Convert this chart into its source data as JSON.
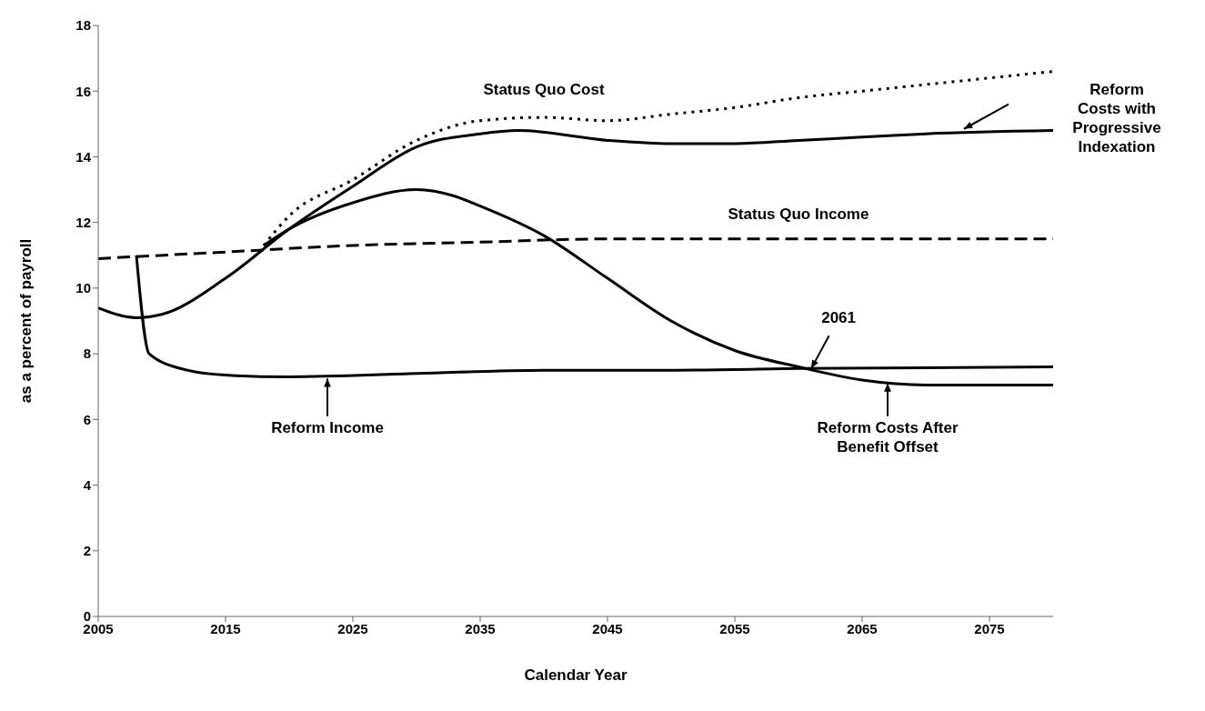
{
  "chart_data": {
    "type": "line",
    "xlabel": "Calendar Year",
    "ylabel": "as a percent of payroll",
    "xlim": [
      2005,
      2080
    ],
    "xticks": [
      2005,
      2015,
      2025,
      2035,
      2045,
      2055,
      2065,
      2075
    ],
    "ylim": [
      0,
      18
    ],
    "yticks": [
      0,
      2,
      4,
      6,
      8,
      10,
      12,
      14,
      16,
      18
    ],
    "marker": "none",
    "series": [
      {
        "name": "Status Quo Cost",
        "color": "#000000",
        "line_style": "dotted",
        "x": [
          2018,
          2020,
          2025,
          2030,
          2035,
          2040,
          2045,
          2050,
          2055,
          2060,
          2065,
          2070,
          2075,
          2080
        ],
        "values": [
          11.3,
          12.2,
          13.3,
          14.5,
          15.1,
          15.2,
          15.1,
          15.3,
          15.5,
          15.8,
          16.0,
          16.2,
          16.4,
          16.6
        ]
      },
      {
        "name": "Reform Costs with Progressive Indexation",
        "color": "#000000",
        "line_style": "solid",
        "x": [
          2005,
          2008,
          2010,
          2015,
          2020,
          2025,
          2030,
          2035,
          2038,
          2045,
          2050,
          2055,
          2060,
          2065,
          2070,
          2080
        ],
        "values": [
          9.4,
          9.1,
          9.2,
          10.3,
          11.8,
          13.1,
          14.3,
          14.7,
          14.8,
          14.5,
          14.4,
          14.4,
          14.5,
          14.6,
          14.7,
          14.8
        ]
      },
      {
        "name": "Status Quo Income",
        "color": "#000000",
        "line_style": "dashed",
        "x": [
          2005,
          2015,
          2025,
          2035,
          2045,
          2055,
          2080
        ],
        "values": [
          10.9,
          11.1,
          11.3,
          11.4,
          11.5,
          11.5,
          11.5
        ]
      },
      {
        "name": "Reform Income",
        "color": "#000000",
        "line_style": "solid",
        "x": [
          2008,
          2009,
          2012,
          2015,
          2020,
          2030,
          2040,
          2050,
          2060,
          2080
        ],
        "values": [
          11.0,
          8.0,
          7.5,
          7.35,
          7.3,
          7.4,
          7.5,
          7.5,
          7.55,
          7.6
        ]
      },
      {
        "name": "Reform Costs After Benefit Offset",
        "color": "#000000",
        "line_style": "solid",
        "x": [
          2018,
          2020,
          2025,
          2030,
          2033,
          2035,
          2040,
          2045,
          2050,
          2055,
          2060,
          2065,
          2070,
          2080
        ],
        "values": [
          11.3,
          11.8,
          12.6,
          13.0,
          12.8,
          12.5,
          11.6,
          10.3,
          9.0,
          8.1,
          7.6,
          7.2,
          7.05,
          7.05
        ]
      }
    ],
    "annotations": [
      {
        "text": "2061",
        "x": 2061,
        "y": 7.55
      }
    ]
  }
}
